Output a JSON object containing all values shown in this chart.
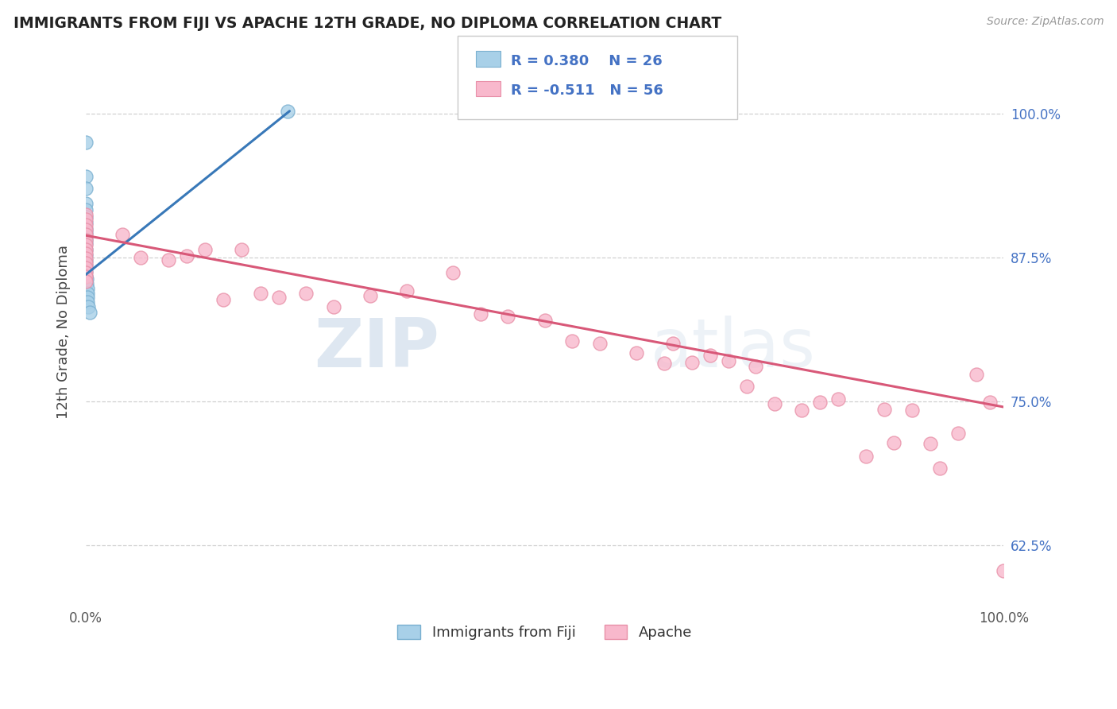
{
  "title": "IMMIGRANTS FROM FIJI VS APACHE 12TH GRADE, NO DIPLOMA CORRELATION CHART",
  "source_text": "Source: ZipAtlas.com",
  "ylabel": "12th Grade, No Diploma",
  "xlim": [
    0.0,
    1.0
  ],
  "ylim": [
    0.575,
    1.045
  ],
  "ytick_vals": [
    0.625,
    0.75,
    0.875,
    1.0
  ],
  "ytick_labels": [
    "62.5%",
    "75.0%",
    "87.5%",
    "100.0%"
  ],
  "xtick_vals": [
    0.0,
    1.0
  ],
  "xtick_labels": [
    "0.0%",
    "100.0%"
  ],
  "legend_label1": "Immigrants from Fiji",
  "legend_label2": "Apache",
  "blue_scatter_color": "#a8d0e8",
  "blue_edge_color": "#7ab0d0",
  "pink_scatter_color": "#f8b8cc",
  "pink_edge_color": "#e890a8",
  "blue_line_color": "#3878b8",
  "pink_line_color": "#d85878",
  "fiji_x": [
    0.0,
    0.0,
    0.0,
    0.0,
    0.0,
    0.0,
    0.0,
    0.0,
    0.0,
    0.0,
    0.0,
    0.0,
    0.0,
    0.0,
    0.0,
    0.0,
    0.0,
    0.001,
    0.001,
    0.002,
    0.002,
    0.002,
    0.002,
    0.003,
    0.004,
    0.22
  ],
  "fiji_y": [
    0.975,
    0.945,
    0.935,
    0.922,
    0.916,
    0.91,
    0.905,
    0.9,
    0.896,
    0.891,
    0.887,
    0.882,
    0.877,
    0.872,
    0.868,
    0.863,
    0.858,
    0.856,
    0.852,
    0.848,
    0.844,
    0.84,
    0.836,
    0.832,
    0.827,
    1.002
  ],
  "apache_x": [
    0.0,
    0.0,
    0.0,
    0.0,
    0.0,
    0.0,
    0.0,
    0.0,
    0.0,
    0.0,
    0.0,
    0.0,
    0.0,
    0.0,
    0.0,
    0.04,
    0.06,
    0.09,
    0.11,
    0.13,
    0.15,
    0.17,
    0.19,
    0.21,
    0.24,
    0.27,
    0.31,
    0.35,
    0.4,
    0.43,
    0.46,
    0.5,
    0.53,
    0.56,
    0.6,
    0.63,
    0.64,
    0.66,
    0.68,
    0.7,
    0.72,
    0.73,
    0.75,
    0.78,
    0.8,
    0.82,
    0.85,
    0.87,
    0.88,
    0.9,
    0.92,
    0.93,
    0.95,
    0.97,
    0.985,
    1.0
  ],
  "apache_y": [
    0.912,
    0.908,
    0.903,
    0.899,
    0.895,
    0.89,
    0.886,
    0.882,
    0.878,
    0.874,
    0.87,
    0.866,
    0.862,
    0.858,
    0.854,
    0.895,
    0.875,
    0.873,
    0.876,
    0.882,
    0.838,
    0.882,
    0.844,
    0.84,
    0.844,
    0.832,
    0.842,
    0.846,
    0.862,
    0.826,
    0.824,
    0.82,
    0.802,
    0.8,
    0.792,
    0.783,
    0.8,
    0.784,
    0.79,
    0.785,
    0.763,
    0.78,
    0.748,
    0.742,
    0.749,
    0.752,
    0.702,
    0.743,
    0.714,
    0.742,
    0.713,
    0.692,
    0.722,
    0.773,
    0.749,
    0.603
  ],
  "blue_trend_x": [
    0.0,
    0.222
  ],
  "blue_trend_y": [
    0.86,
    1.002
  ],
  "pink_trend_x": [
    0.0,
    1.0
  ],
  "pink_trend_y": [
    0.894,
    0.745
  ],
  "watermark_zip": "ZIP",
  "watermark_atlas": "atlas"
}
